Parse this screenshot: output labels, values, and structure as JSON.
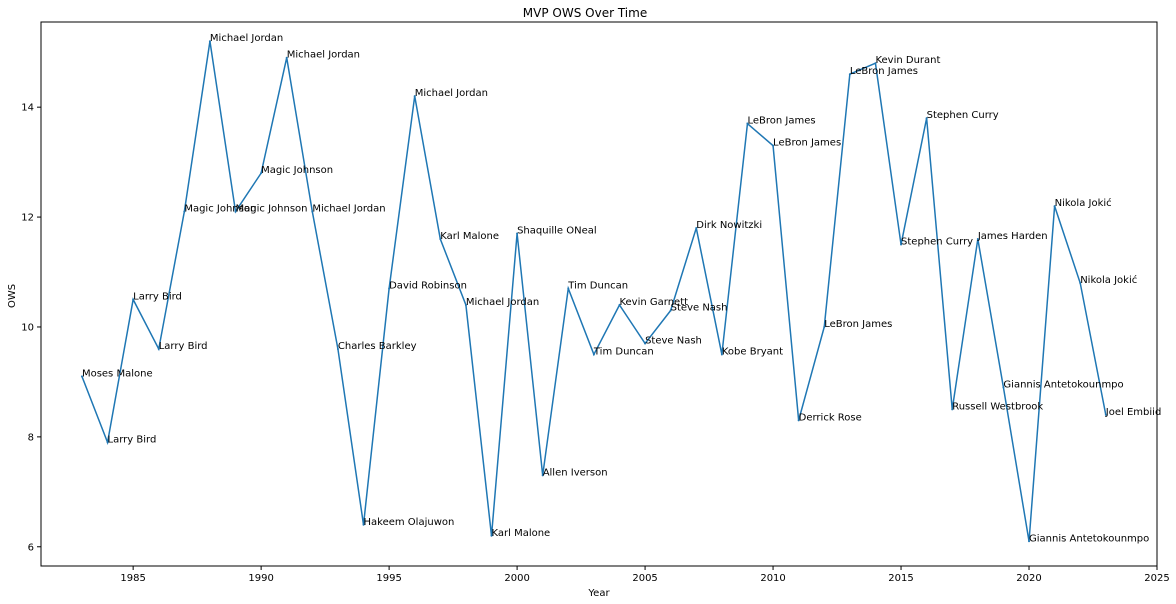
{
  "chart_data": {
    "type": "line",
    "title": "MVP OWS Over Time",
    "xlabel": "Year",
    "ylabel": "OWS",
    "xlim": [
      1981.4,
      2025
    ],
    "ylim": [
      5.65,
      15.55
    ],
    "xticks": [
      1985,
      1990,
      1995,
      2000,
      2005,
      2010,
      2015,
      2020,
      2025
    ],
    "yticks": [
      6,
      8,
      10,
      12,
      14
    ],
    "grid": false,
    "line_color": "#1f77b4",
    "series": [
      {
        "points": [
          {
            "x": 1983,
            "y": 9.1,
            "label": "Moses Malone"
          },
          {
            "x": 1984,
            "y": 7.9,
            "label": "Larry Bird"
          },
          {
            "x": 1985,
            "y": 10.5,
            "label": "Larry Bird"
          },
          {
            "x": 1986,
            "y": 9.6,
            "label": "Larry Bird"
          },
          {
            "x": 1987,
            "y": 12.1,
            "label": "Magic Johnson"
          },
          {
            "x": 1988,
            "y": 15.2,
            "label": "Michael Jordan"
          },
          {
            "x": 1989,
            "y": 12.1,
            "label": "Magic Johnson"
          },
          {
            "x": 1990,
            "y": 12.8,
            "label": "Magic Johnson"
          },
          {
            "x": 1991,
            "y": 14.9,
            "label": "Michael Jordan"
          },
          {
            "x": 1992,
            "y": 12.1,
            "label": "Michael Jordan"
          },
          {
            "x": 1993,
            "y": 9.6,
            "label": "Charles Barkley"
          },
          {
            "x": 1994,
            "y": 6.4,
            "label": "Hakeem Olajuwon"
          },
          {
            "x": 1995,
            "y": 10.7,
            "label": "David Robinson"
          },
          {
            "x": 1996,
            "y": 14.2,
            "label": "Michael Jordan"
          },
          {
            "x": 1997,
            "y": 11.6,
            "label": "Karl Malone"
          },
          {
            "x": 1998,
            "y": 10.4,
            "label": "Michael Jordan"
          },
          {
            "x": 1999,
            "y": 6.2,
            "label": "Karl Malone"
          },
          {
            "x": 2000,
            "y": 11.7,
            "label": "Shaquille ONeal"
          },
          {
            "x": 2001,
            "y": 7.3,
            "label": "Allen Iverson"
          },
          {
            "x": 2002,
            "y": 10.7,
            "label": "Tim Duncan"
          },
          {
            "x": 2003,
            "y": 9.5,
            "label": "Tim Duncan"
          },
          {
            "x": 2004,
            "y": 10.4,
            "label": "Kevin Garnett"
          },
          {
            "x": 2005,
            "y": 9.7,
            "label": "Steve Nash"
          },
          {
            "x": 2006,
            "y": 10.3,
            "label": "Steve Nash"
          },
          {
            "x": 2007,
            "y": 11.8,
            "label": "Dirk Nowitzki"
          },
          {
            "x": 2008,
            "y": 9.5,
            "label": "Kobe Bryant"
          },
          {
            "x": 2009,
            "y": 13.7,
            "label": "LeBron James"
          },
          {
            "x": 2010,
            "y": 13.3,
            "label": "LeBron James"
          },
          {
            "x": 2011,
            "y": 8.3,
            "label": "Derrick Rose"
          },
          {
            "x": 2012,
            "y": 10.0,
            "label": "LeBron James"
          },
          {
            "x": 2013,
            "y": 14.6,
            "label": "LeBron James"
          },
          {
            "x": 2014,
            "y": 14.8,
            "label": "Kevin Durant"
          },
          {
            "x": 2015,
            "y": 11.5,
            "label": "Stephen Curry"
          },
          {
            "x": 2016,
            "y": 13.8,
            "label": "Stephen Curry"
          },
          {
            "x": 2017,
            "y": 8.5,
            "label": "Russell Westbrook"
          },
          {
            "x": 2018,
            "y": 11.6,
            "label": "James Harden"
          },
          {
            "x": 2019,
            "y": 8.9,
            "label": "Giannis Antetokounmpo"
          },
          {
            "x": 2020,
            "y": 6.1,
            "label": "Giannis Antetokounmpo"
          },
          {
            "x": 2021,
            "y": 12.2,
            "label": "Nikola Jokić"
          },
          {
            "x": 2022,
            "y": 10.8,
            "label": "Nikola Jokić"
          },
          {
            "x": 2023,
            "y": 8.4,
            "label": "Joel Embiid"
          }
        ]
      }
    ]
  }
}
